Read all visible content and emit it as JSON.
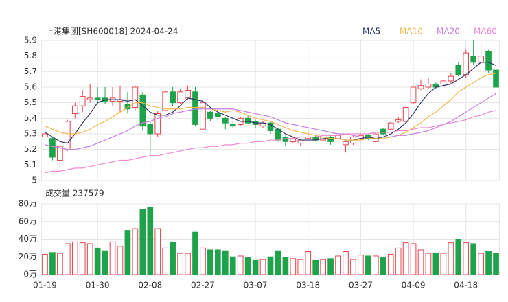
{
  "chart_data": [
    {
      "type": "candlestick",
      "title": "上港集团[SH600018] 2024-04-24",
      "up_color": "#e8414b",
      "down_color": "#1fa34a",
      "grid": true,
      "ylim": [
        5,
        5.9
      ],
      "yticks": [
        5,
        5.1,
        5.2,
        5.3,
        5.4,
        5.5,
        5.6,
        5.7,
        5.8,
        5.9
      ],
      "open": [
        5.28,
        5.27,
        5.13,
        5.2,
        5.43,
        5.48,
        5.52,
        5.53,
        5.53,
        5.51,
        5.51,
        5.49,
        5.47,
        5.55,
        5.36,
        5.3,
        5.45,
        5.57,
        5.5,
        5.53,
        5.57,
        5.33,
        5.44,
        5.43,
        5.4,
        5.36,
        5.36,
        5.4,
        5.38,
        5.35,
        5.37,
        5.33,
        5.28,
        5.25,
        5.24,
        5.27,
        5.28,
        5.26,
        5.28,
        5.27,
        5.23,
        5.24,
        5.27,
        5.29,
        5.25,
        5.33,
        5.33,
        5.38,
        5.38,
        5.5,
        5.59,
        5.6,
        5.62,
        5.62,
        5.64,
        5.74,
        5.68,
        5.8,
        5.76,
        5.83,
        5.71
      ],
      "high": [
        5.34,
        5.28,
        5.23,
        5.39,
        5.5,
        5.58,
        5.62,
        5.6,
        5.6,
        5.6,
        5.61,
        5.57,
        5.61,
        5.57,
        5.38,
        5.45,
        5.58,
        5.6,
        5.59,
        5.61,
        5.6,
        5.52,
        5.45,
        5.44,
        5.41,
        5.38,
        5.41,
        5.42,
        5.39,
        5.38,
        5.38,
        5.34,
        5.29,
        5.28,
        5.27,
        5.33,
        5.29,
        5.29,
        5.29,
        5.3,
        5.26,
        5.29,
        5.3,
        5.3,
        5.31,
        5.34,
        5.38,
        5.41,
        5.48,
        5.61,
        5.65,
        5.66,
        5.63,
        5.65,
        5.69,
        5.76,
        5.84,
        5.9,
        5.88,
        5.84,
        5.72
      ],
      "low": [
        5.25,
        5.13,
        5.07,
        5.19,
        5.4,
        5.44,
        5.5,
        5.49,
        5.49,
        5.48,
        5.44,
        5.43,
        5.45,
        5.32,
        5.15,
        5.28,
        5.44,
        5.48,
        5.49,
        5.52,
        5.35,
        5.32,
        5.38,
        5.39,
        5.33,
        5.34,
        5.35,
        5.36,
        5.34,
        5.34,
        5.3,
        5.25,
        5.22,
        5.24,
        5.22,
        5.26,
        5.25,
        5.25,
        5.23,
        5.26,
        5.18,
        5.23,
        5.26,
        5.26,
        5.24,
        5.29,
        5.32,
        5.37,
        5.37,
        5.49,
        5.58,
        5.59,
        5.59,
        5.6,
        5.62,
        5.67,
        5.66,
        5.74,
        5.74,
        5.69,
        5.59
      ],
      "close": [
        5.3,
        5.15,
        5.22,
        5.38,
        5.48,
        5.54,
        5.53,
        5.52,
        5.51,
        5.53,
        5.52,
        5.46,
        5.6,
        5.35,
        5.3,
        5.43,
        5.57,
        5.5,
        5.57,
        5.58,
        5.36,
        5.5,
        5.4,
        5.41,
        5.37,
        5.35,
        5.4,
        5.37,
        5.36,
        5.37,
        5.32,
        5.26,
        5.25,
        5.27,
        5.26,
        5.28,
        5.26,
        5.28,
        5.25,
        5.29,
        5.25,
        5.28,
        5.29,
        5.27,
        5.3,
        5.3,
        5.37,
        5.39,
        5.47,
        5.6,
        5.61,
        5.62,
        5.6,
        5.64,
        5.67,
        5.68,
        5.82,
        5.76,
        5.8,
        5.71,
        5.6
      ],
      "series": [
        {
          "name": "MA5",
          "color": "#2b3566",
          "values": [
            5.31,
            5.28,
            5.25,
            5.24,
            5.3,
            5.37,
            5.43,
            5.5,
            5.52,
            5.52,
            5.52,
            5.51,
            5.52,
            5.48,
            5.44,
            5.42,
            5.42,
            5.44,
            5.48,
            5.53,
            5.52,
            5.51,
            5.47,
            5.44,
            5.42,
            5.4,
            5.38,
            5.38,
            5.37,
            5.37,
            5.36,
            5.33,
            5.3,
            5.28,
            5.26,
            5.26,
            5.26,
            5.27,
            5.27,
            5.27,
            5.26,
            5.26,
            5.27,
            5.28,
            5.27,
            5.28,
            5.3,
            5.33,
            5.37,
            5.43,
            5.5,
            5.56,
            5.6,
            5.61,
            5.62,
            5.65,
            5.68,
            5.72,
            5.76,
            5.76,
            5.74
          ]
        },
        {
          "name": "MA10",
          "color": "#f2b84b",
          "values": [
            5.35,
            5.33,
            5.31,
            5.3,
            5.3,
            5.31,
            5.33,
            5.36,
            5.38,
            5.41,
            5.44,
            5.47,
            5.5,
            5.5,
            5.48,
            5.47,
            5.46,
            5.46,
            5.46,
            5.47,
            5.47,
            5.47,
            5.46,
            5.45,
            5.44,
            5.45,
            5.44,
            5.42,
            5.4,
            5.39,
            5.38,
            5.36,
            5.34,
            5.32,
            5.31,
            5.3,
            5.29,
            5.28,
            5.27,
            5.27,
            5.26,
            5.26,
            5.26,
            5.27,
            5.27,
            5.27,
            5.28,
            5.29,
            5.31,
            5.34,
            5.37,
            5.41,
            5.44,
            5.48,
            5.52,
            5.57,
            5.6,
            5.63,
            5.66,
            5.68,
            5.69
          ]
        },
        {
          "name": "MA20",
          "color": "#c57fe0",
          "values": [
            5.23,
            5.22,
            5.21,
            5.2,
            5.2,
            5.21,
            5.22,
            5.24,
            5.26,
            5.28,
            5.3,
            5.32,
            5.35,
            5.37,
            5.38,
            5.4,
            5.41,
            5.43,
            5.44,
            5.45,
            5.46,
            5.46,
            5.46,
            5.46,
            5.46,
            5.46,
            5.45,
            5.44,
            5.43,
            5.42,
            5.41,
            5.39,
            5.37,
            5.36,
            5.35,
            5.34,
            5.33,
            5.32,
            5.31,
            5.3,
            5.3,
            5.29,
            5.28,
            5.28,
            5.28,
            5.28,
            5.28,
            5.29,
            5.29,
            5.3,
            5.31,
            5.32,
            5.34,
            5.36,
            5.38,
            5.41,
            5.44,
            5.47,
            5.5,
            5.53,
            5.56
          ]
        },
        {
          "name": "MA60",
          "color": "#f08ad0",
          "values": [
            5.05,
            5.06,
            5.06,
            5.07,
            5.08,
            5.08,
            5.09,
            5.1,
            5.11,
            5.12,
            5.13,
            5.13,
            5.14,
            5.15,
            5.16,
            5.16,
            5.17,
            5.18,
            5.19,
            5.2,
            5.21,
            5.21,
            5.22,
            5.22,
            5.23,
            5.23,
            5.24,
            5.24,
            5.25,
            5.25,
            5.26,
            5.26,
            5.27,
            5.27,
            5.28,
            5.28,
            5.28,
            5.29,
            5.29,
            5.29,
            5.3,
            5.3,
            5.3,
            5.3,
            5.31,
            5.31,
            5.31,
            5.32,
            5.32,
            5.33,
            5.34,
            5.34,
            5.35,
            5.36,
            5.37,
            5.38,
            5.39,
            5.41,
            5.42,
            5.44,
            5.45
          ]
        }
      ]
    },
    {
      "type": "bar",
      "title": "成交量 237579",
      "grid": true,
      "ylim": [
        0,
        80
      ],
      "yticks": [
        {
          "value": 0,
          "label": "0万"
        },
        {
          "value": 20,
          "label": "20万"
        },
        {
          "value": 40,
          "label": "40万"
        },
        {
          "value": 60,
          "label": "60万"
        },
        {
          "value": 80,
          "label": "80万"
        }
      ],
      "categories": [
        "01-19",
        null,
        null,
        null,
        null,
        null,
        null,
        "01-30",
        null,
        null,
        null,
        null,
        null,
        null,
        "02-08",
        null,
        null,
        null,
        null,
        null,
        null,
        "02-27",
        null,
        null,
        null,
        null,
        null,
        null,
        "03-07",
        null,
        null,
        null,
        null,
        null,
        null,
        "03-18",
        null,
        null,
        null,
        null,
        null,
        null,
        "03-27",
        null,
        null,
        null,
        null,
        null,
        null,
        "04-09",
        null,
        null,
        null,
        null,
        null,
        null,
        "04-18",
        null,
        null,
        null,
        null
      ],
      "values": [
        23,
        25,
        24,
        35,
        37,
        36,
        35,
        30,
        27,
        37,
        32,
        50,
        52,
        74,
        76,
        52,
        30,
        37,
        24,
        24,
        48,
        30,
        28,
        28,
        27,
        20,
        21,
        19,
        16,
        17,
        20,
        27,
        19,
        18,
        17,
        26,
        16,
        17,
        18,
        21,
        26,
        17,
        22,
        21,
        21,
        19,
        23,
        30,
        36,
        35,
        28,
        24,
        24,
        24,
        36,
        40,
        36,
        35,
        24,
        26,
        24
      ]
    }
  ]
}
